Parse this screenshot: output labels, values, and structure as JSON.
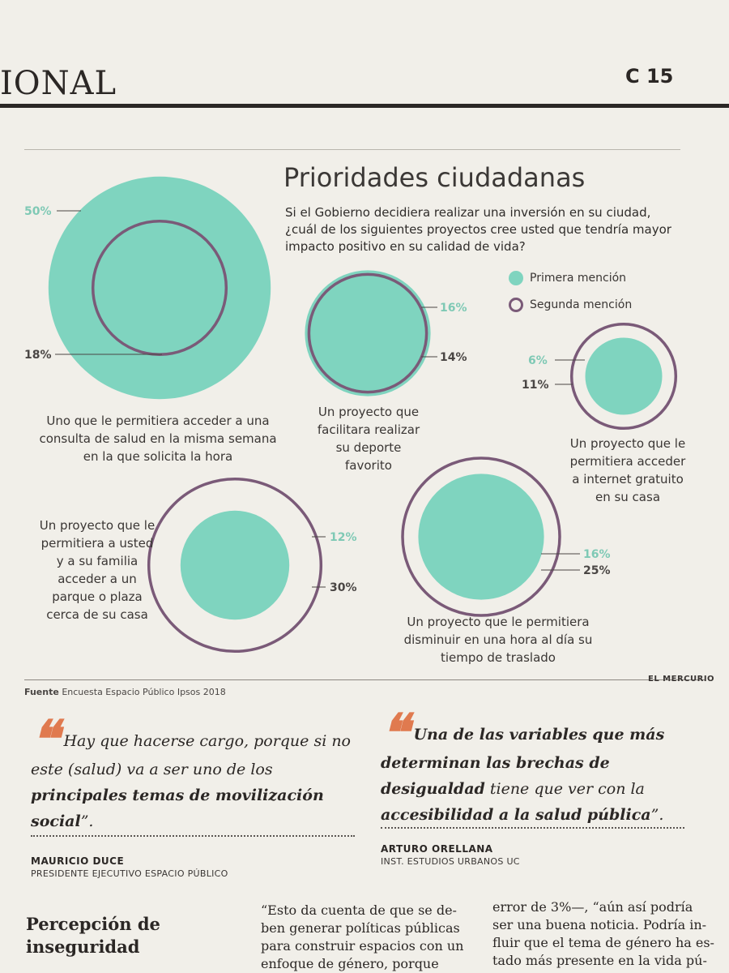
{
  "page": {
    "section_name": "IONAL",
    "page_number": "C 15"
  },
  "chart_data": {
    "type": "bubble",
    "title": "Prioridades ciudadanas",
    "question": "Si el Gobierno decidiera realizar una inversión en su ciudad, ¿cuál de los siguientes proyectos cree usted que tendría mayor impacto positivo en su calidad de vida?",
    "legend": [
      "Primera mención",
      "Segunda mención"
    ],
    "series": [
      {
        "name": "Primera mención",
        "color": "#7fd4bf"
      },
      {
        "name": "Segunda mención",
        "color": "#7a5a78"
      }
    ],
    "items": [
      {
        "category": "Uno que le permitiera acceder a una consulta de salud en la misma semana en la que solicita la hora",
        "primera": 50,
        "segunda": 18,
        "primera_label": "50%",
        "segunda_label": "18%"
      },
      {
        "category": "Un proyecto que facilitara realizar su deporte favorito",
        "primera": 16,
        "segunda": 14,
        "primera_label": "16%",
        "segunda_label": "14%"
      },
      {
        "category": "Un proyecto que le permitiera acceder a internet gratuito en su casa",
        "primera": 6,
        "segunda": 11,
        "primera_label": "6%",
        "segunda_label": "11%"
      },
      {
        "category": "Un proyecto que le permitiera a usted y a su familia acceder a un parque o plaza cerca de su casa",
        "primera": 12,
        "segunda": 30,
        "primera_label": "12%",
        "segunda_label": "30%"
      },
      {
        "category": "Un proyecto que le permitiera disminuir en una hora al día su tiempo de traslado",
        "primera": 16,
        "segunda": 25,
        "primera_label": "16%",
        "segunda_label": "25%"
      }
    ]
  },
  "captions": {
    "salud": [
      "Uno que le permitiera acceder a una",
      "consulta de salud en la misma semana",
      "en la que solicita la hora"
    ],
    "deporte": [
      "Un proyecto que",
      "facilitara realizar",
      "su deporte",
      "favorito"
    ],
    "internet": [
      "Un proyecto que le",
      "permitiera acceder",
      "a internet gratuito",
      "en su casa"
    ],
    "parque": [
      "Un proyecto que le",
      "permitiera a usted",
      "y a su familia",
      "acceder a un",
      "parque o plaza",
      "cerca de su casa"
    ],
    "traslado": [
      "Un proyecto que le permitiera",
      "disminuir en una hora al día su",
      "tiempo de traslado"
    ]
  },
  "source": {
    "label": "Fuente",
    "text": "Encuesta Espacio Público Ipsos 2018"
  },
  "brand": "EL MERCURIO",
  "quotes": [
    {
      "mark": "❝",
      "text_plain": "Hay que hacerse cargo, porque si no este (salud) va a ser uno de los",
      "text_bold": "principales temas de movilización social",
      "text_end": "”.",
      "author": "MAURICIO DUCE",
      "role": "PRESIDENTE EJECUTIVO ESPACIO PÚBLICO"
    },
    {
      "mark": "❝",
      "text_bold": "Una de las variables que más determinan las brechas de desigualdad",
      "text_plain": "tiene que ver con la",
      "text_bold2": "accesibilidad a la salud pública",
      "text_end": "”.",
      "author": "ARTURO ORELLANA",
      "role": "INST. ESTUDIOS URBANOS UC"
    }
  ],
  "article": {
    "heading": [
      "Percepción de",
      "inseguridad"
    ],
    "col2": [
      "“Esto da cuenta de que se de-",
      "ben generar políticas públicas",
      "para construir espacios con un",
      "enfoque de género, porque"
    ],
    "col3": [
      "error de 3%—, “aún así podría",
      "ser una buena noticia. Podría in-",
      "fluir que el tema de género ha es-",
      "tado más presente en la vida pú-"
    ]
  }
}
